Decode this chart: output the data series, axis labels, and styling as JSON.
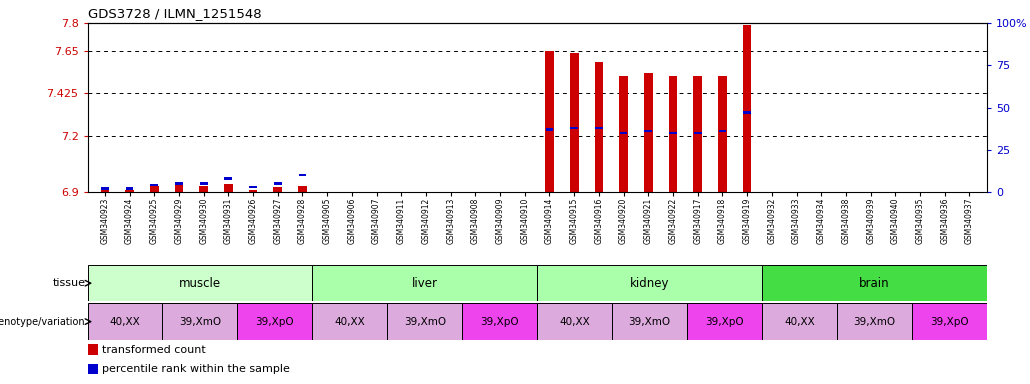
{
  "title": "GDS3728 / ILMN_1251548",
  "samples": [
    "GSM340923",
    "GSM340924",
    "GSM340925",
    "GSM340929",
    "GSM340930",
    "GSM340931",
    "GSM340926",
    "GSM340927",
    "GSM340928",
    "GSM340905",
    "GSM340906",
    "GSM340907",
    "GSM340911",
    "GSM340912",
    "GSM340913",
    "GSM340908",
    "GSM340909",
    "GSM340910",
    "GSM340914",
    "GSM340915",
    "GSM340916",
    "GSM340920",
    "GSM340921",
    "GSM340922",
    "GSM340917",
    "GSM340918",
    "GSM340919",
    "GSM340932",
    "GSM340933",
    "GSM340934",
    "GSM340938",
    "GSM340939",
    "GSM340940",
    "GSM340935",
    "GSM340936",
    "GSM340937"
  ],
  "transformed_count": [
    6.913,
    6.91,
    6.93,
    6.94,
    6.93,
    6.945,
    6.91,
    6.928,
    6.93,
    6.9,
    6.9,
    6.9,
    6.9,
    6.9,
    6.9,
    6.9,
    6.9,
    6.9,
    7.65,
    7.638,
    7.59,
    7.52,
    7.535,
    7.52,
    7.52,
    7.52,
    7.79,
    6.9,
    6.9,
    6.9,
    6.9,
    6.9,
    6.9,
    6.9,
    6.9,
    6.9
  ],
  "percentile_rank": [
    2,
    2,
    4,
    5,
    5,
    8,
    3,
    5,
    10,
    0,
    0,
    0,
    0,
    0,
    0,
    0,
    0,
    0,
    37,
    38,
    38,
    35,
    36,
    35,
    35,
    36,
    47,
    0,
    0,
    0,
    0,
    0,
    0,
    0,
    0,
    0
  ],
  "y_min": 6.9,
  "y_max": 7.8,
  "y_ticks_left": [
    6.9,
    7.2,
    7.425,
    7.65,
    7.8
  ],
  "y_ticks_right_vals": [
    0,
    25,
    50,
    75,
    100
  ],
  "y_ticks_right_labels": [
    "0",
    "25",
    "50",
    "75",
    "100%"
  ],
  "bar_color": "#cc0000",
  "percentile_color": "#0000cc",
  "tissue_groups": [
    {
      "label": "muscle",
      "start": 0,
      "end": 8,
      "color": "#ccffcc"
    },
    {
      "label": "liver",
      "start": 9,
      "end": 17,
      "color": "#aaffaa"
    },
    {
      "label": "kidney",
      "start": 18,
      "end": 26,
      "color": "#aaffaa"
    },
    {
      "label": "brain",
      "start": 27,
      "end": 35,
      "color": "#44dd44"
    }
  ],
  "genotype_groups": [
    {
      "label": "40,XX",
      "start": 0,
      "end": 2,
      "color": "#ddaadd"
    },
    {
      "label": "39,XmO",
      "start": 3,
      "end": 5,
      "color": "#ddaadd"
    },
    {
      "label": "39,XpO",
      "start": 6,
      "end": 8,
      "color": "#ee44ee"
    },
    {
      "label": "40,XX",
      "start": 9,
      "end": 11,
      "color": "#ddaadd"
    },
    {
      "label": "39,XmO",
      "start": 12,
      "end": 14,
      "color": "#ddaadd"
    },
    {
      "label": "39,XpO",
      "start": 15,
      "end": 17,
      "color": "#ee44ee"
    },
    {
      "label": "40,XX",
      "start": 18,
      "end": 20,
      "color": "#ddaadd"
    },
    {
      "label": "39,XmO",
      "start": 21,
      "end": 23,
      "color": "#ddaadd"
    },
    {
      "label": "39,XpO",
      "start": 24,
      "end": 26,
      "color": "#ee44ee"
    },
    {
      "label": "40,XX",
      "start": 27,
      "end": 29,
      "color": "#ddaadd"
    },
    {
      "label": "39,XmO",
      "start": 30,
      "end": 32,
      "color": "#ddaadd"
    },
    {
      "label": "39,XpO",
      "start": 33,
      "end": 35,
      "color": "#ee44ee"
    }
  ],
  "legend_red_label": "transformed count",
  "legend_blue_label": "percentile rank within the sample"
}
